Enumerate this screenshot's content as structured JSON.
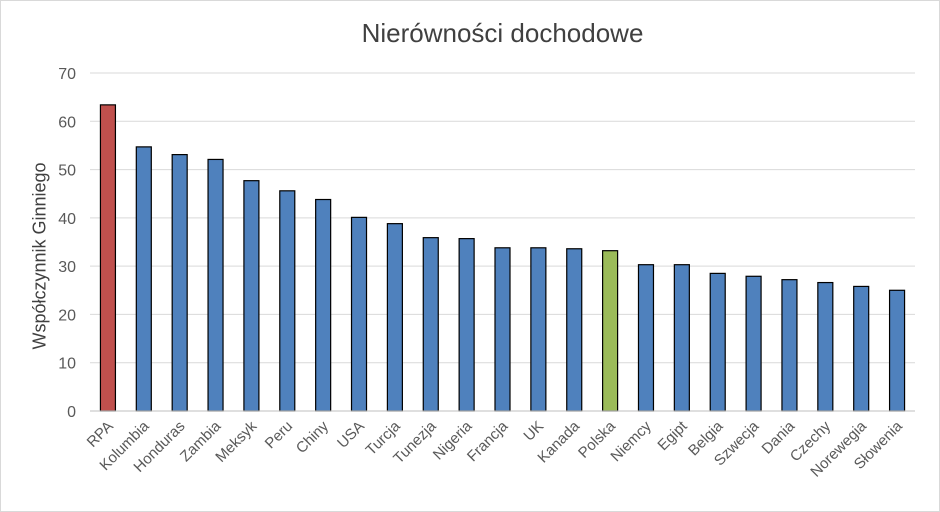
{
  "chart_data": {
    "type": "bar",
    "title": "Nierówności dochodowe",
    "xlabel": "",
    "ylabel": "Współczynnik Ginniego",
    "ylim": [
      0,
      70
    ],
    "yticks": [
      0,
      10,
      20,
      30,
      40,
      50,
      60,
      70
    ],
    "grid": true,
    "categories": [
      "RPA",
      "Kolumbia",
      "Honduras",
      "Zambia",
      "Meksyk",
      "Peru",
      "Chiny",
      "USA",
      "Turcja",
      "Tunezja",
      "Nigeria",
      "Francja",
      "UK",
      "Kanada",
      "Polska",
      "Niemcy",
      "Egipt",
      "Belgia",
      "Szwecja",
      "Dania",
      "Czechy",
      "Norewegia",
      "Słowenia"
    ],
    "values": [
      63.4,
      54.7,
      53.1,
      52.1,
      47.7,
      45.6,
      43.8,
      40.1,
      38.8,
      35.9,
      35.7,
      33.8,
      33.8,
      33.6,
      33.2,
      30.3,
      30.3,
      28.5,
      27.9,
      27.2,
      26.6,
      25.8,
      25.0
    ],
    "colors": [
      "#c0504d",
      "#4f81bd",
      "#4f81bd",
      "#4f81bd",
      "#4f81bd",
      "#4f81bd",
      "#4f81bd",
      "#4f81bd",
      "#4f81bd",
      "#4f81bd",
      "#4f81bd",
      "#4f81bd",
      "#4f81bd",
      "#4f81bd",
      "#9bbb59",
      "#4f81bd",
      "#4f81bd",
      "#4f81bd",
      "#4f81bd",
      "#4f81bd",
      "#4f81bd",
      "#4f81bd",
      "#4f81bd"
    ]
  }
}
